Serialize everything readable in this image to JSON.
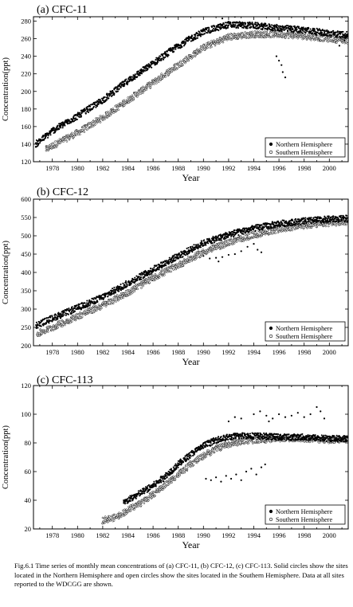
{
  "caption": {
    "text": "Fig.6.1  Time series of monthly mean concentrations of (a) CFC-11, (b) CFC-12, (c) CFC-113.  Solid circles show the sites located in the Northern Hemisphere and open circles show the sites located in the Southern Hemisphere. Data at all sites reported to the WDCGG are shown."
  },
  "chart_data": [
    {
      "type": "scatter",
      "title": "(a) CFC-11",
      "xlabel": "Year",
      "ylabel": "Concentration(ppt)",
      "xlim": [
        1976.5,
        2001.5
      ],
      "ylim": [
        120,
        285
      ],
      "xticks": [
        1978,
        1980,
        1982,
        1984,
        1986,
        1988,
        1990,
        1992,
        1994,
        1996,
        1998,
        2000
      ],
      "yticks": [
        120,
        140,
        160,
        180,
        200,
        220,
        240,
        260,
        280
      ],
      "legend_position": "bottom-right",
      "series": [
        {
          "name": "Northern Hemisphere",
          "marker": "filled-circle",
          "color": "#000000",
          "trend": [
            [
              1976.7,
              140
            ],
            [
              1978,
              155
            ],
            [
              1980,
              172
            ],
            [
              1982,
              190
            ],
            [
              1984,
              212
            ],
            [
              1986,
              232
            ],
            [
              1988,
              252
            ],
            [
              1990,
              268
            ],
            [
              1992,
              276
            ],
            [
              1994,
              275
            ],
            [
              1996,
              272
            ],
            [
              1998,
              270
            ],
            [
              2000,
              266
            ],
            [
              2001.5,
              264
            ]
          ],
          "outliers": [
            [
              1995.8,
              240
            ],
            [
              1996.0,
              235
            ],
            [
              1996.2,
              230
            ],
            [
              1996.3,
              222
            ],
            [
              1996.5,
              216
            ],
            [
              1990.4,
              286
            ],
            [
              1991.5,
              283
            ],
            [
              1992.5,
              285
            ],
            [
              2000.8,
              252
            ],
            [
              2001.2,
              258
            ]
          ]
        },
        {
          "name": "Southern Hemisphere",
          "marker": "open-circle",
          "color": "#000000",
          "trend": [
            [
              1977.5,
              134
            ],
            [
              1978,
              138
            ],
            [
              1980,
              153
            ],
            [
              1982,
              170
            ],
            [
              1984,
              190
            ],
            [
              1986,
              210
            ],
            [
              1988,
              230
            ],
            [
              1990,
              250
            ],
            [
              1992,
              262
            ],
            [
              1994,
              265
            ],
            [
              1996,
              265
            ],
            [
              1998,
              263
            ],
            [
              2000,
              260
            ],
            [
              2001.5,
              258
            ]
          ],
          "outliers": []
        }
      ]
    },
    {
      "type": "scatter",
      "title": "(b) CFC-12",
      "xlabel": "Year",
      "ylabel": "Concentration(ppt)",
      "xlim": [
        1976.5,
        2001.5
      ],
      "ylim": [
        200,
        600
      ],
      "xticks": [
        1978,
        1980,
        1982,
        1984,
        1986,
        1988,
        1990,
        1992,
        1994,
        1996,
        1998,
        2000
      ],
      "yticks": [
        200,
        250,
        300,
        350,
        400,
        450,
        500,
        550,
        600
      ],
      "legend_position": "bottom-right",
      "series": [
        {
          "name": "Northern Hemisphere",
          "marker": "filled-circle",
          "color": "#000000",
          "trend": [
            [
              1976.7,
              255
            ],
            [
              1978,
              275
            ],
            [
              1980,
              303
            ],
            [
              1982,
              333
            ],
            [
              1984,
              370
            ],
            [
              1986,
              408
            ],
            [
              1988,
              445
            ],
            [
              1990,
              480
            ],
            [
              1992,
              503
            ],
            [
              1994,
              520
            ],
            [
              1996,
              533
            ],
            [
              1998,
              540
            ],
            [
              2000,
              545
            ],
            [
              2001.5,
              547
            ]
          ],
          "outliers": [
            [
              1990.0,
              445
            ],
            [
              1990.5,
              438
            ],
            [
              1991.0,
              440
            ],
            [
              1991.5,
              442
            ],
            [
              1992.0,
              448
            ],
            [
              1992.5,
              450
            ],
            [
              1993.0,
              458
            ],
            [
              1993.5,
              470
            ],
            [
              1994.0,
              478
            ],
            [
              1994.3,
              462
            ],
            [
              1994.6,
              455
            ],
            [
              1991.2,
              430
            ]
          ]
        },
        {
          "name": "Southern Hemisphere",
          "marker": "open-circle",
          "color": "#000000",
          "trend": [
            [
              1976.8,
              232
            ],
            [
              1978,
              250
            ],
            [
              1980,
              280
            ],
            [
              1982,
              310
            ],
            [
              1984,
              345
            ],
            [
              1986,
              385
            ],
            [
              1988,
              420
            ],
            [
              1990,
              455
            ],
            [
              1992,
              482
            ],
            [
              1994,
              502
            ],
            [
              1996,
              518
            ],
            [
              1998,
              528
            ],
            [
              2000,
              535
            ],
            [
              2001.5,
              538
            ]
          ],
          "outliers": []
        }
      ]
    },
    {
      "type": "scatter",
      "title": "(c) CFC-113",
      "xlabel": "Year",
      "ylabel": "Concentration(ppt)",
      "xlim": [
        1976.5,
        2001.5
      ],
      "ylim": [
        20,
        120
      ],
      "xticks": [
        1978,
        1980,
        1982,
        1984,
        1986,
        1988,
        1990,
        1992,
        1994,
        1996,
        1998,
        2000
      ],
      "yticks": [
        20,
        40,
        60,
        80,
        100,
        120
      ],
      "legend_position": "bottom-right",
      "series": [
        {
          "name": "Northern Hemisphere",
          "marker": "filled-circle",
          "color": "#000000",
          "trend": [
            [
              1983.7,
              38
            ],
            [
              1984,
              40
            ],
            [
              1985,
              45
            ],
            [
              1986,
              50
            ],
            [
              1987,
              57
            ],
            [
              1988,
              65
            ],
            [
              1989,
              72
            ],
            [
              1990,
              78
            ],
            [
              1991,
              82
            ],
            [
              1992,
              84
            ],
            [
              1993,
              85
            ],
            [
              1994,
              85
            ],
            [
              1996,
              84
            ],
            [
              1998,
              84
            ],
            [
              2000,
              83
            ],
            [
              2001.5,
              83
            ]
          ],
          "outliers": [
            [
              1990.2,
              55
            ],
            [
              1990.6,
              54
            ],
            [
              1991.0,
              56
            ],
            [
              1991.4,
              53
            ],
            [
              1991.8,
              57
            ],
            [
              1992.2,
              55
            ],
            [
              1992.6,
              58
            ],
            [
              1993.0,
              54
            ],
            [
              1993.4,
              60
            ],
            [
              1993.8,
              62
            ],
            [
              1994.2,
              58
            ],
            [
              1994.6,
              63
            ],
            [
              1994.9,
              65
            ],
            [
              1992.0,
              95
            ],
            [
              1992.5,
              98
            ],
            [
              1993.0,
              97
            ],
            [
              1994.0,
              100
            ],
            [
              1994.5,
              102
            ],
            [
              1995.0,
              99
            ],
            [
              1995.5,
              97
            ],
            [
              1996.0,
              100
            ],
            [
              1996.5,
              98
            ],
            [
              1997.0,
              99
            ],
            [
              1997.5,
              101
            ],
            [
              1998.0,
              98
            ],
            [
              1998.5,
              100
            ],
            [
              1999.0,
              105
            ],
            [
              1999.3,
              102
            ],
            [
              1999.6,
              97
            ],
            [
              1995.2,
              95
            ]
          ]
        },
        {
          "name": "Southern Hemisphere",
          "marker": "open-circle",
          "color": "#000000",
          "trend": [
            [
              1982,
              26
            ],
            [
              1983,
              28
            ],
            [
              1984,
              33
            ],
            [
              1985,
              38
            ],
            [
              1986,
              44
            ],
            [
              1987,
              51
            ],
            [
              1988,
              58
            ],
            [
              1989,
              65
            ],
            [
              1990,
              71
            ],
            [
              1991,
              76
            ],
            [
              1992,
              79
            ],
            [
              1993,
              81
            ],
            [
              1994,
              82
            ],
            [
              1996,
              83
            ],
            [
              1998,
              83
            ],
            [
              2000,
              82
            ],
            [
              2001.5,
              82
            ]
          ],
          "outliers": []
        }
      ]
    }
  ]
}
